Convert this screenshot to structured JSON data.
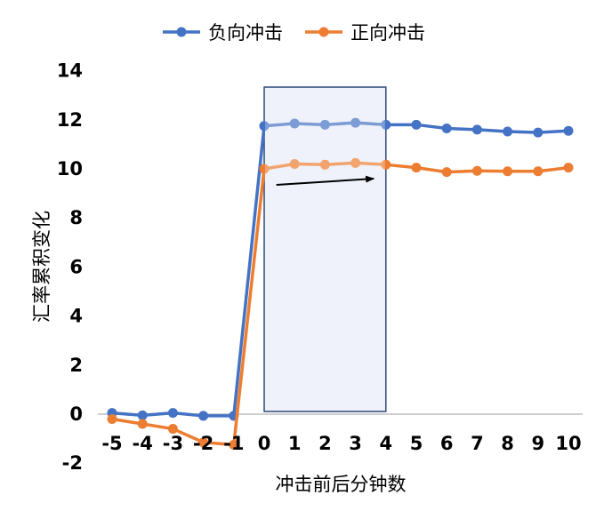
{
  "chart_data": {
    "type": "line",
    "categories": [
      "-5",
      "-4",
      "-3",
      "-2",
      "-1",
      "0",
      "1",
      "2",
      "3",
      "4",
      "5",
      "6",
      "7",
      "8",
      "9",
      "10"
    ],
    "xlabel": "冲击前后分钟数",
    "ylabel": "汇率累积变化",
    "ylim": [
      -2,
      14
    ],
    "yticks": [
      "-2",
      "0",
      "2",
      "4",
      "6",
      "8",
      "10",
      "12",
      "14"
    ],
    "grid": false,
    "legend_position": "top-center",
    "series": [
      {
        "name": "负向冲击",
        "color": "#4472C4",
        "values": [
          0.05,
          -0.05,
          0.05,
          -0.07,
          -0.07,
          11.75,
          11.85,
          11.8,
          11.88,
          11.8,
          11.8,
          11.65,
          11.6,
          11.52,
          11.48,
          11.55
        ]
      },
      {
        "name": "正向冲击",
        "color": "#ED7D31",
        "values": [
          -0.2,
          -0.4,
          -0.6,
          -1.15,
          -1.25,
          10.0,
          10.2,
          10.17,
          10.24,
          10.17,
          10.05,
          9.87,
          9.92,
          9.9,
          9.9,
          10.05
        ]
      }
    ],
    "annotations": {
      "highlight_window": {
        "x_start": "0",
        "x_end": "4",
        "fill": "#E8EDF8",
        "stroke": "#2F4A7A"
      },
      "arrow": {
        "from": {
          "x": 0.4,
          "y": 9.35
        },
        "to": {
          "x": 3.6,
          "y": 9.6
        },
        "color": "#000000"
      }
    }
  }
}
